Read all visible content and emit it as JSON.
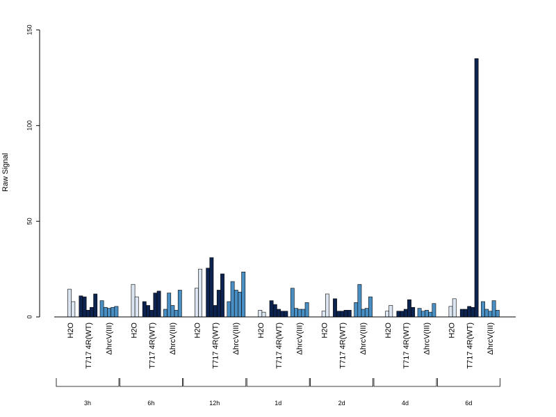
{
  "chart_data": {
    "type": "bar",
    "ylabel": "Raw Signal",
    "xlabel": "",
    "title": "",
    "ylim": [
      0,
      150
    ],
    "yticks": [
      0,
      50,
      100,
      150
    ],
    "conditions": [
      {
        "label": "H2O",
        "color": "#dce6f2"
      },
      {
        "label": "T717 4R(WT)",
        "color": "#0e2450"
      },
      {
        "label": "ΔhrcV(III)",
        "color": "#4a8fc4"
      }
    ],
    "groups": [
      {
        "label": "3h",
        "values": [
          [
            14.5,
            8
          ],
          [
            11,
            10.5,
            3.5,
            5,
            12
          ],
          [
            8.5,
            5,
            4.5,
            5,
            5.5
          ]
        ]
      },
      {
        "label": "6h",
        "values": [
          [
            17,
            10.5
          ],
          [
            8,
            6,
            3.5,
            12.5,
            13.5
          ],
          [
            4,
            12.5,
            6,
            3.5,
            14
          ]
        ]
      },
      {
        "label": "12h",
        "values": [
          [
            15,
            25
          ],
          [
            25.5,
            31,
            6,
            14,
            22.5
          ],
          [
            8,
            18.5,
            14,
            13,
            23.5
          ]
        ]
      },
      {
        "label": "1d",
        "values": [
          [
            3.5,
            2.5
          ],
          [
            8.5,
            6.5,
            4,
            3,
            3
          ],
          [
            15,
            4.5,
            4,
            4,
            7.5
          ]
        ]
      },
      {
        "label": "2d",
        "values": [
          [
            3,
            12
          ],
          [
            9.5,
            3,
            3,
            3.5,
            3.5
          ],
          [
            7.5,
            17,
            4,
            4.5,
            10.5
          ]
        ]
      },
      {
        "label": "4d",
        "values": [
          [
            3,
            6
          ],
          [
            3,
            3,
            4,
            9,
            5
          ],
          [
            4.5,
            3,
            3.5,
            2.5,
            7
          ]
        ]
      },
      {
        "label": "6d",
        "values": [
          [
            5.5,
            9.5
          ],
          [
            4,
            4,
            5.5,
            5,
            135
          ],
          [
            8,
            4,
            3,
            8.5,
            3.5
          ]
        ]
      }
    ]
  }
}
